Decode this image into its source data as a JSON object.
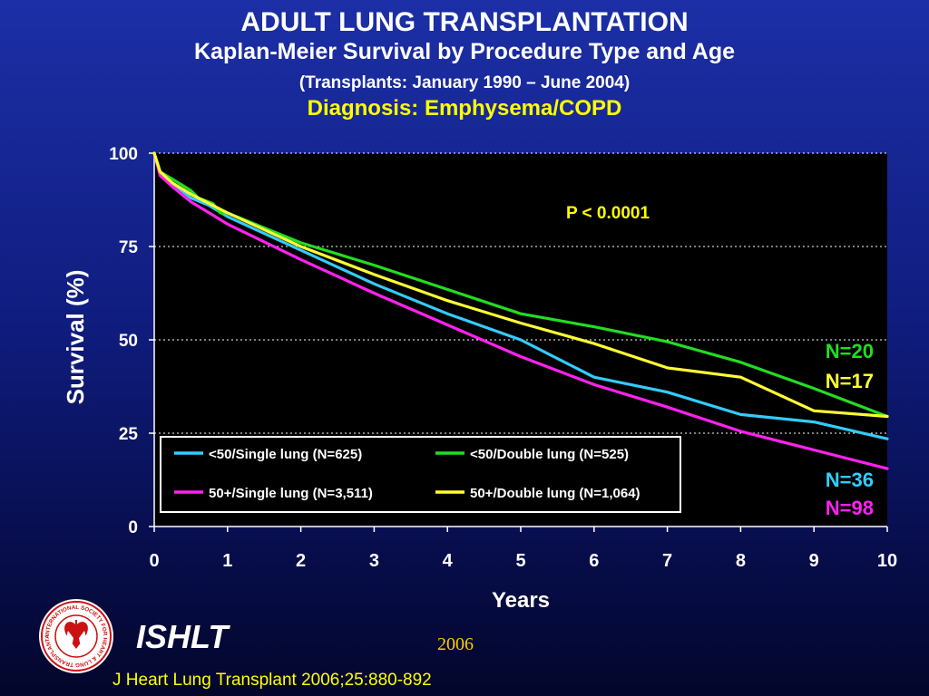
{
  "header": {
    "title": "ADULT LUNG TRANSPLANTATION",
    "subtitle": "Kaplan-Meier Survival by Procedure Type and Age",
    "dates": "(Transplants: January 1990 – June 2004)",
    "diagnosis": "Diagnosis: Emphysema/COPD"
  },
  "footer": {
    "brand": "ISHLT",
    "year": "2006",
    "citation": "J Heart Lung Transplant 2006;25:880-892",
    "logo_ring_text": "INTERNATIONAL SOCIETY FOR HEART & LUNG TRANSPLANTATION",
    "logo_icon": "heart-lung-seal-icon"
  },
  "colors": {
    "background_top": "#1c2fa6",
    "background_bottom": "#03062a",
    "plot_background": "#000000",
    "accent_yellow": "#ffff00"
  },
  "chart_data": {
    "type": "line",
    "xlabel": "Years",
    "ylabel": "Survival (%)",
    "xlim": [
      0,
      10
    ],
    "ylim": [
      0,
      100
    ],
    "x_ticks": [
      0,
      1,
      2,
      3,
      4,
      5,
      6,
      7,
      8,
      9,
      10
    ],
    "y_ticks": [
      0,
      25,
      50,
      75,
      100
    ],
    "grid": "horizontal dotted at 25, 50, 75, 100",
    "legend_position": "lower-left inside plot",
    "annotation": "P < 0.0001",
    "series": [
      {
        "name": "<50/Single lung (N=625)",
        "color": "#33ccff",
        "end_label": "N=36",
        "points": [
          [
            0,
            100
          ],
          [
            0.08,
            95
          ],
          [
            0.25,
            92
          ],
          [
            0.5,
            88
          ],
          [
            0.75,
            86
          ],
          [
            1,
            83
          ],
          [
            2,
            74
          ],
          [
            3,
            65
          ],
          [
            4,
            57
          ],
          [
            5,
            50
          ],
          [
            6,
            40
          ],
          [
            7,
            36
          ],
          [
            8,
            30
          ],
          [
            9,
            28
          ],
          [
            10,
            23.5
          ]
        ]
      },
      {
        "name": "<50/Double lung (N=525)",
        "color": "#22dd22",
        "end_label": "N=20",
        "points": [
          [
            0,
            100
          ],
          [
            0.08,
            95
          ],
          [
            0.25,
            93
          ],
          [
            0.5,
            90
          ],
          [
            0.6,
            88
          ],
          [
            0.8,
            86.5
          ],
          [
            0.9,
            84
          ],
          [
            1,
            84
          ],
          [
            2,
            76
          ],
          [
            3,
            70
          ],
          [
            4,
            63.5
          ],
          [
            5,
            57
          ],
          [
            6,
            53.5
          ],
          [
            7,
            49.5
          ],
          [
            8,
            44
          ],
          [
            9,
            37
          ],
          [
            10,
            29.5
          ]
        ]
      },
      {
        "name": "50+/Single lung (N=3,511)",
        "color": "#ff22ee",
        "end_label": "N=98",
        "points": [
          [
            0,
            100
          ],
          [
            0.08,
            94
          ],
          [
            0.25,
            91
          ],
          [
            0.5,
            87
          ],
          [
            0.75,
            84
          ],
          [
            1,
            81
          ],
          [
            2,
            71.5
          ],
          [
            3,
            62.5
          ],
          [
            4,
            54
          ],
          [
            5,
            45.5
          ],
          [
            6,
            38
          ],
          [
            7,
            32
          ],
          [
            8,
            25.5
          ],
          [
            9,
            20.5
          ],
          [
            10,
            15.5
          ]
        ]
      },
      {
        "name": "50+/Double lung (N=1,064)",
        "color": "#ffff33",
        "end_label": "N=17",
        "points": [
          [
            0,
            100
          ],
          [
            0.08,
            95
          ],
          [
            0.25,
            92
          ],
          [
            0.5,
            89
          ],
          [
            0.75,
            86.5
          ],
          [
            1,
            84
          ],
          [
            2,
            75
          ],
          [
            3,
            67.5
          ],
          [
            4,
            60.5
          ],
          [
            5,
            54.5
          ],
          [
            6,
            49
          ],
          [
            7,
            42.5
          ],
          [
            8,
            40
          ],
          [
            9,
            31
          ],
          [
            10,
            29.5
          ]
        ]
      }
    ]
  }
}
